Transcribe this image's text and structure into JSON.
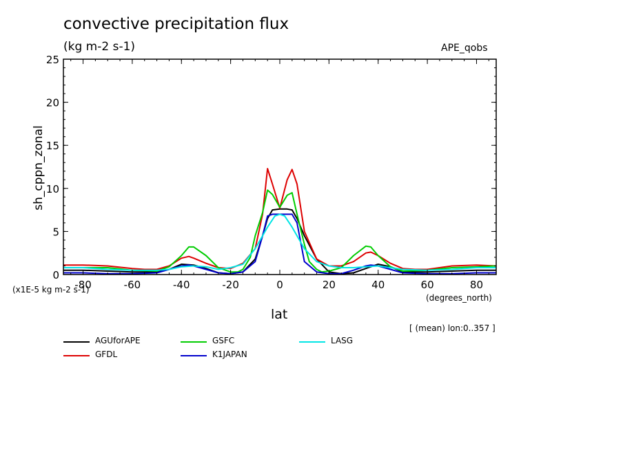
{
  "chart_data": {
    "type": "line",
    "title": "convective precipitation flux",
    "units": "(kg m-2 s-1)",
    "dataset": "APE_qobs",
    "xlabel": "lat",
    "x_units": "(degrees_north)",
    "ylabel": "sh_cppn_zonal",
    "y_scale_note": "(x1E-5 kg m-2 s-1)",
    "footnote": "[ (mean) lon:0..357 ]",
    "xlim": [
      -88,
      88
    ],
    "ylim": [
      0,
      25
    ],
    "xticks": [
      -80,
      -60,
      -40,
      -20,
      0,
      20,
      40,
      60,
      80
    ],
    "xtick_labels": [
      "-80",
      "-60",
      "-40",
      "-20",
      "0",
      "20",
      "40",
      "60",
      "80"
    ],
    "yticks": [
      0,
      5,
      10,
      15,
      20,
      25
    ],
    "ytick_labels": [
      "0",
      "5",
      "10",
      "15",
      "20",
      "25"
    ],
    "series": [
      {
        "name": "AGUforAPE",
        "color": "#000000",
        "x": [
          -88,
          -80,
          -70,
          -60,
          -50,
          -45,
          -40,
          -35,
          -30,
          -25,
          -20,
          -15,
          -10,
          -7,
          -5,
          -3,
          0,
          3,
          5,
          7,
          10,
          15,
          20,
          25,
          30,
          35,
          40,
          45,
          50,
          60,
          70,
          80,
          88
        ],
        "y": [
          0.5,
          0.5,
          0.4,
          0.3,
          0.3,
          0.6,
          1.2,
          1.1,
          0.7,
          0.2,
          0.1,
          0.3,
          1.8,
          4.5,
          6.5,
          7.5,
          7.6,
          7.6,
          7.5,
          6.5,
          4.5,
          1.8,
          0.3,
          0.1,
          0.2,
          0.7,
          1.2,
          0.9,
          0.3,
          0.3,
          0.4,
          0.5,
          0.5
        ]
      },
      {
        "name": "GFDL",
        "color": "#dd0000",
        "x": [
          -88,
          -80,
          -70,
          -60,
          -55,
          -50,
          -45,
          -40,
          -37,
          -35,
          -30,
          -25,
          -20,
          -15,
          -10,
          -7,
          -5,
          -3,
          0,
          3,
          5,
          7,
          10,
          15,
          20,
          25,
          30,
          35,
          37,
          40,
          45,
          50,
          55,
          60,
          70,
          80,
          88
        ],
        "y": [
          1.1,
          1.1,
          1.0,
          0.7,
          0.6,
          0.6,
          1.0,
          1.9,
          2.1,
          1.9,
          1.3,
          0.8,
          0.7,
          1.3,
          3.0,
          7.0,
          12.3,
          10.5,
          7.7,
          11.0,
          12.2,
          10.5,
          5.0,
          1.8,
          1.0,
          1.0,
          1.5,
          2.5,
          2.6,
          2.2,
          1.3,
          0.7,
          0.6,
          0.6,
          1.0,
          1.1,
          1.0
        ]
      },
      {
        "name": "GSFC",
        "color": "#00cc00",
        "x": [
          -88,
          -80,
          -70,
          -60,
          -50,
          -45,
          -40,
          -37,
          -35,
          -30,
          -25,
          -20,
          -17,
          -15,
          -12,
          -10,
          -7,
          -5,
          -3,
          0,
          3,
          5,
          7,
          10,
          12,
          15,
          17,
          20,
          25,
          30,
          35,
          37,
          40,
          45,
          50,
          60,
          70,
          80,
          88
        ],
        "y": [
          0.8,
          0.8,
          0.8,
          0.5,
          0.4,
          0.9,
          2.2,
          3.2,
          3.2,
          2.2,
          0.8,
          0.3,
          0.3,
          0.6,
          2.0,
          4.5,
          7.2,
          9.8,
          9.3,
          7.8,
          9.2,
          9.5,
          7.0,
          3.5,
          1.5,
          0.6,
          0.3,
          0.4,
          0.8,
          2.2,
          3.3,
          3.2,
          2.2,
          0.9,
          0.4,
          0.5,
          0.8,
          0.9,
          1.0
        ]
      },
      {
        "name": "K1JAPAN",
        "color": "#0000cc",
        "x": [
          -88,
          -80,
          -70,
          -60,
          -50,
          -45,
          -40,
          -37,
          -35,
          -30,
          -25,
          -20,
          -15,
          -10,
          -7,
          -5,
          -3,
          0,
          3,
          5,
          7,
          10,
          15,
          20,
          25,
          30,
          35,
          37,
          40,
          45,
          50,
          60,
          70,
          80,
          88
        ],
        "y": [
          0.2,
          0.2,
          0.1,
          0.1,
          0.2,
          0.6,
          1.0,
          1.1,
          1.0,
          0.6,
          0.2,
          0.1,
          0.3,
          1.5,
          4.5,
          6.8,
          7.0,
          7.0,
          7.0,
          7.0,
          6.0,
          1.5,
          0.3,
          0.1,
          0.1,
          0.5,
          1.0,
          1.1,
          1.0,
          0.6,
          0.2,
          0.1,
          0.1,
          0.2,
          0.2
        ]
      },
      {
        "name": "LASG",
        "color": "#00e5e5",
        "x": [
          -88,
          -80,
          -70,
          -60,
          -50,
          -45,
          -40,
          -35,
          -30,
          -25,
          -20,
          -15,
          -10,
          -5,
          -2,
          0,
          2,
          5,
          10,
          15,
          20,
          25,
          30,
          35,
          40,
          45,
          50,
          60,
          70,
          80,
          88
        ],
        "y": [
          0.8,
          0.8,
          0.6,
          0.5,
          0.5,
          0.6,
          0.9,
          1.0,
          0.9,
          0.6,
          0.8,
          1.2,
          3.0,
          5.5,
          6.8,
          7.0,
          6.8,
          5.5,
          3.0,
          1.5,
          1.0,
          0.8,
          0.8,
          0.9,
          1.0,
          0.8,
          0.6,
          0.5,
          0.6,
          0.8,
          0.8
        ]
      }
    ]
  }
}
